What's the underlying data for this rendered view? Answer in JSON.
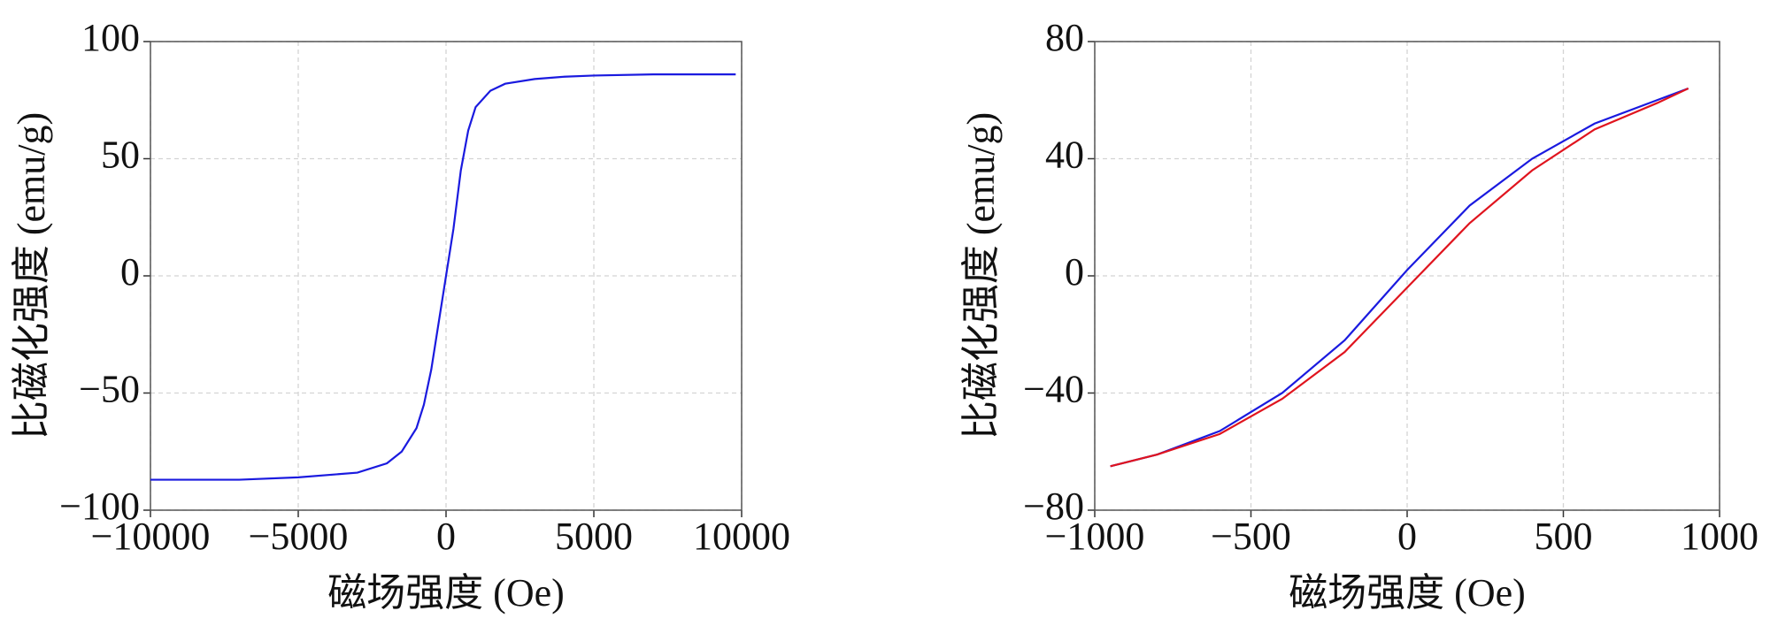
{
  "chart_data": [
    {
      "type": "line",
      "xlabel": "磁场强度 (Oe)",
      "ylabel": "比磁化强度 (emu/g)",
      "x": [
        -10000,
        -7000,
        -5000,
        -3000,
        -2000,
        -1500,
        -1000,
        -750,
        -500,
        -250,
        0,
        250,
        500,
        750,
        1000,
        1500,
        2000,
        3000,
        4000,
        5000,
        7000,
        9800
      ],
      "values": [
        -87,
        -87,
        -86,
        -84,
        -80,
        -75,
        -65,
        -55,
        -40,
        -20,
        0,
        20,
        45,
        62,
        72,
        79,
        82,
        84,
        85,
        85.5,
        86,
        86
      ],
      "color": "#1a1adf",
      "xlim": [
        -10000,
        10000
      ],
      "ylim": [
        -100,
        100
      ],
      "xticks": [
        {
          "value": -10000,
          "label": "−10000"
        },
        {
          "value": -5000,
          "label": "−5000"
        },
        0,
        5000,
        10000
      ],
      "yticks": [
        {
          "value": -100,
          "label": "−100"
        },
        {
          "value": -50,
          "label": "−50"
        },
        0,
        50,
        100
      ],
      "grid": true
    },
    {
      "type": "line",
      "xlabel": "磁场强度 (Oe)",
      "ylabel": "比磁化强度 (emu/g)",
      "x": [
        -950,
        -800,
        -600,
        -400,
        -200,
        0,
        200,
        400,
        600,
        800,
        900
      ],
      "series": [
        {
          "color": "#1a1adf",
          "values": [
            -65,
            -61,
            -53,
            -40,
            -22,
            2,
            24,
            40,
            52,
            60,
            64
          ]
        },
        {
          "color": "#e0141e",
          "values": [
            -65,
            -61,
            -54,
            -42,
            -26,
            -4,
            18,
            36,
            50,
            59,
            64
          ]
        }
      ],
      "xlim": [
        -1000,
        1000
      ],
      "ylim": [
        -80,
        80
      ],
      "xticks": [
        {
          "value": -1000,
          "label": "−1000"
        },
        {
          "value": -500,
          "label": "−500"
        },
        0,
        500,
        1000
      ],
      "yticks": [
        {
          "value": -80,
          "label": "−80"
        },
        {
          "value": -40,
          "label": "−40"
        },
        0,
        40,
        80
      ],
      "grid": true
    }
  ]
}
